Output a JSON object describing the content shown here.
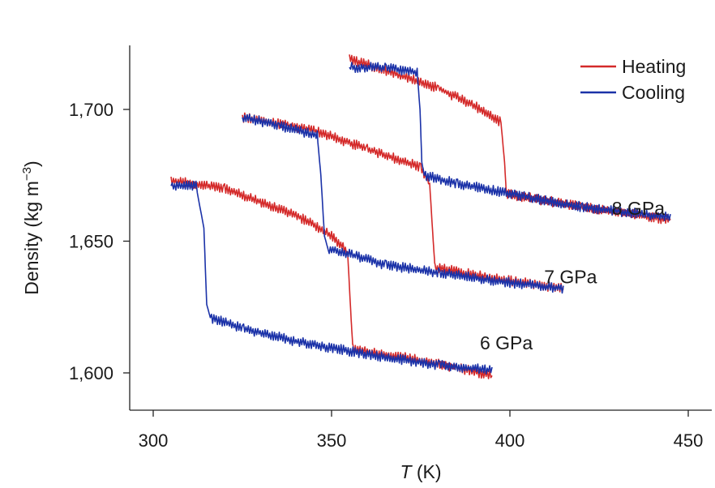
{
  "chart_data": {
    "type": "line",
    "xlabel_main": "T",
    "xlabel_unit": " (K)",
    "ylabel_main": "Density (kg m",
    "ylabel_exp": "−3",
    "ylabel_close": ")",
    "xlim": [
      293,
      455
    ],
    "ylim": [
      1585,
      1725
    ],
    "xticks": [
      300,
      350,
      400,
      450
    ],
    "xtick_labels": [
      "300",
      "350",
      "400",
      "450"
    ],
    "yticks": [
      1600,
      1650,
      1700
    ],
    "ytick_labels": [
      "1,600",
      "1,650",
      "1,700"
    ],
    "grid": false,
    "legend_position": "top-right",
    "legend": [
      {
        "label": "Heating",
        "color": "#d42a2a"
      },
      {
        "label": "Cooling",
        "color": "#1b32a8"
      }
    ],
    "annotations": [
      {
        "text": "8 GPa",
        "x": 436,
        "y": 1660
      },
      {
        "text": "7 GPa",
        "x": 417,
        "y": 1634
      },
      {
        "text": "6 GPa",
        "x": 399,
        "y": 1609
      }
    ],
    "series": [
      {
        "name": "Heating",
        "pressure": "6 GPa",
        "color": "#d42a2a",
        "x": [
          305,
          320,
          340,
          350,
          354.5,
          355.5,
          356,
          370,
          385,
          395
        ],
        "y": [
          1673,
          1670,
          1660,
          1652,
          1646,
          1620,
          1609,
          1606,
          1602,
          1599
        ]
      },
      {
        "name": "Cooling",
        "pressure": "6 GPa",
        "color": "#1b32a8",
        "x": [
          395,
          380,
          360,
          340,
          325,
          316,
          315,
          314.2,
          312,
          305
        ],
        "y": [
          1601,
          1603,
          1607,
          1612,
          1617,
          1621,
          1626,
          1655,
          1671,
          1671
        ]
      },
      {
        "name": "Heating",
        "pressure": "7 GPa",
        "color": "#d42a2a",
        "x": [
          325,
          345,
          360,
          375,
          377.5,
          378.5,
          379,
          395,
          415
        ],
        "y": [
          1697,
          1692,
          1685,
          1678,
          1672,
          1650,
          1640,
          1636,
          1632
        ]
      },
      {
        "name": "Cooling",
        "pressure": "7 GPa",
        "color": "#1b32a8",
        "x": [
          415,
          395,
          380,
          365,
          355,
          349,
          348,
          347,
          346,
          335,
          325
        ],
        "y": [
          1632,
          1635,
          1638,
          1641,
          1645,
          1647,
          1652,
          1675,
          1690,
          1694,
          1697
        ]
      },
      {
        "name": "Heating",
        "pressure": "8 GPa",
        "color": "#d42a2a",
        "x": [
          355,
          365,
          380,
          392,
          397.5,
          398.5,
          399,
          420,
          445
        ],
        "y": [
          1719,
          1715,
          1708,
          1700,
          1695,
          1680,
          1668,
          1663,
          1658
        ]
      },
      {
        "name": "Cooling",
        "pressure": "8 GPa",
        "color": "#1b32a8",
        "x": [
          445,
          420,
          400,
          385,
          376,
          375.3,
          374.8,
          374,
          365,
          355
        ],
        "y": [
          1659,
          1663,
          1668,
          1672,
          1675,
          1680,
          1700,
          1714,
          1716,
          1716
        ]
      }
    ]
  }
}
